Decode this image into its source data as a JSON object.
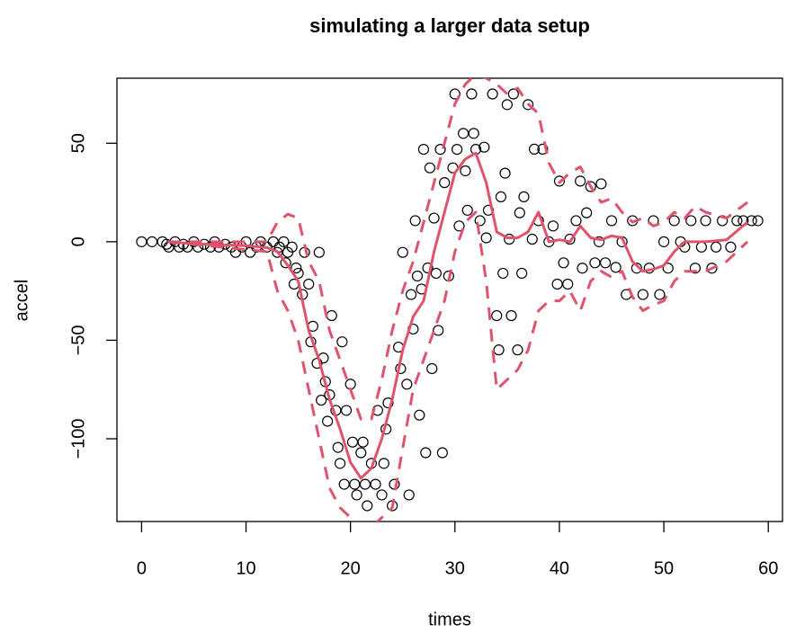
{
  "chart_data": {
    "type": "scatter",
    "title": "simulating a larger data setup",
    "xlabel": "times",
    "ylabel": "accel",
    "xlim": [
      -2.36,
      61.36
    ],
    "ylim": [
      -142,
      83
    ],
    "xticks": [
      0,
      10,
      20,
      30,
      40,
      50,
      60
    ],
    "yticks": [
      {
        "value": -100,
        "label": "−100"
      },
      {
        "value": -50,
        "label": "−50"
      },
      0,
      50
    ],
    "series": [
      {
        "mode": "points",
        "color": "#000000",
        "x": [
          0,
          1,
          2,
          2.4,
          2.6,
          3.2,
          3.6,
          4,
          4.4,
          5,
          5.4,
          6,
          6.6,
          7,
          7.4,
          8,
          8.6,
          9,
          9.6,
          10,
          10.4,
          11,
          11.4,
          12,
          12.6,
          13,
          13.2,
          13.6,
          13.8,
          14,
          14.4,
          14.6,
          14.8,
          15,
          15.4,
          15.6,
          16,
          16.2,
          16.4,
          16.8,
          17,
          17.2,
          17.4,
          17.6,
          17.8,
          18,
          18.2,
          18.6,
          18.8,
          19,
          19.2,
          19.4,
          19.6,
          20,
          20.2,
          20.4,
          20.6,
          21,
          21.2,
          21.4,
          21.6,
          22,
          22.4,
          22.6,
          23,
          23.2,
          23.4,
          23.6,
          24,
          24.2,
          24.6,
          24.8,
          25,
          25.4,
          25.6,
          25.8,
          26,
          26.2,
          26.4,
          26.6,
          26.8,
          27,
          27.2,
          27.4,
          27.6,
          27.8,
          28,
          28.2,
          28.4,
          28.6,
          28.8,
          29,
          29.4,
          29.8,
          30,
          30.2,
          30.4,
          30.8,
          31,
          31.2,
          31.6,
          31.8,
          32,
          32.4,
          32.8,
          33,
          33.2,
          33.6,
          34,
          34.2,
          34.4,
          34.6,
          34.8,
          35,
          35.2,
          35.4,
          35.6,
          36,
          36.2,
          36.4,
          36.6,
          37,
          37.4,
          37.6,
          38,
          38.4,
          39,
          39.4,
          39.8,
          40,
          40.4,
          40.8,
          41,
          41.6,
          42,
          42.2,
          42.6,
          43,
          43.4,
          43.8,
          44,
          44.4,
          45,
          45.4,
          46,
          46.4,
          47,
          47.4,
          48,
          48.6,
          49,
          49.6,
          50,
          50.4,
          51,
          51.6,
          52,
          52.6,
          53,
          53.6,
          54,
          54.6,
          55,
          55.6,
          56.4,
          57,
          57.6,
          58.4,
          59
        ],
        "y": [
          0,
          0,
          0,
          -1.3,
          -2.7,
          0,
          -2.7,
          -1.3,
          -2.7,
          0,
          -2.7,
          -1.3,
          -2.7,
          0,
          -2.7,
          -1.3,
          -2.7,
          -5.4,
          -2.7,
          0,
          -5.4,
          -2.7,
          0,
          -2.7,
          0,
          -5.4,
          -2.7,
          0,
          -10.7,
          -5.4,
          -2.7,
          -21.5,
          -13.3,
          -16,
          -26.8,
          -5.4,
          -21.5,
          -50.8,
          -42.9,
          -61.7,
          -5.4,
          -80.4,
          -59,
          -71,
          -91.1,
          -77.7,
          -37.5,
          -85.6,
          -104.4,
          -112.5,
          -50.8,
          -123.1,
          -85.6,
          -72.3,
          -101.7,
          -123.1,
          -128.5,
          -107.1,
          -101.7,
          -123.1,
          -134,
          -112.5,
          -123.1,
          -85.6,
          -128.5,
          -112.5,
          -95.1,
          -81.8,
          -134,
          -123.1,
          -53.5,
          -64.4,
          -5.4,
          -72.3,
          -128.5,
          -26.8,
          -44.3,
          10.7,
          -17.4,
          -88,
          -24,
          46.9,
          -107.1,
          -13.3,
          37.5,
          -64.4,
          12,
          -16,
          -45,
          46.9,
          -107.1,
          30,
          -17.4,
          37.5,
          75,
          46.9,
          8,
          55,
          36,
          16,
          75,
          55,
          46.9,
          10.7,
          48,
          2,
          16,
          75,
          -37.5,
          -54.9,
          22.8,
          -16,
          34.8,
          69.6,
          1.3,
          -37.5,
          75,
          -54.9,
          14.7,
          -16,
          22.8,
          69.6,
          1.3,
          47,
          10.7,
          47,
          0,
          8,
          -21.5,
          30.8,
          -10.7,
          -21.5,
          1.3,
          10.7,
          30.8,
          -13.4,
          14.7,
          28,
          -10.7,
          0,
          29.4,
          -10.7,
          10.7,
          -13,
          0,
          -26.8,
          10.7,
          -13.4,
          -26.8,
          -13.4,
          10.7,
          -26.8,
          0,
          -13.4,
          10.7,
          0,
          -2.7,
          10.7,
          -13.4,
          -2.7,
          10.7,
          -13.4,
          -2.7,
          10.7,
          -2.7,
          10.7,
          10.7,
          10.7,
          10.7
        ]
      },
      {
        "mode": "line",
        "color": "#df536b",
        "dashed": false,
        "x": [
          2.5,
          5,
          10,
          12,
          13,
          14,
          15,
          16,
          17,
          18,
          19,
          20,
          21,
          22,
          23,
          24,
          25,
          26,
          27,
          28,
          29,
          30,
          31,
          32,
          33,
          34,
          35,
          36,
          37,
          38,
          39,
          40,
          41,
          42,
          43,
          44,
          45,
          46,
          47,
          48,
          49,
          50,
          51,
          52,
          54,
          56,
          58
        ],
        "y": [
          0,
          -1,
          -2,
          -3,
          -5,
          -12,
          -20,
          -45,
          -60,
          -80,
          -95,
          -112,
          -120,
          -115,
          -100,
          -80,
          -55,
          -38,
          -30,
          -5,
          15,
          35,
          42,
          45,
          30,
          5,
          2,
          2,
          5,
          15,
          0,
          1,
          0,
          8,
          2,
          1,
          3,
          2,
          -10,
          -15,
          -14,
          -12,
          -5,
          0,
          0,
          1,
          10
        ]
      },
      {
        "mode": "line",
        "color": "#df536b",
        "dashed": true,
        "x": [
          2.5,
          10,
          11,
          12,
          13,
          14,
          15,
          16,
          17,
          18,
          19,
          20,
          21,
          22,
          23,
          24,
          25,
          26,
          27,
          28,
          29,
          30,
          31,
          32,
          33,
          34,
          35,
          36,
          37,
          38,
          39,
          40,
          41,
          42,
          43,
          44,
          45,
          46,
          47,
          48,
          49,
          50,
          51,
          52,
          53,
          54,
          56,
          58
        ],
        "y": [
          0,
          0,
          0,
          0,
          10,
          14,
          12,
          -10,
          -20,
          -45,
          -60,
          -75,
          -90,
          -90,
          -70,
          -45,
          -25,
          -10,
          10,
          30,
          50,
          70,
          80,
          85,
          83,
          80,
          75,
          78,
          70,
          65,
          40,
          30,
          35,
          38,
          28,
          20,
          22,
          15,
          10,
          12,
          8,
          10,
          15,
          12,
          18,
          15,
          12,
          20
        ]
      },
      {
        "mode": "line",
        "color": "#df536b",
        "dashed": true,
        "x": [
          2.5,
          10,
          12,
          13,
          14,
          15,
          16,
          17,
          18,
          19,
          20,
          21,
          22,
          23,
          24,
          25,
          26,
          27,
          28,
          29,
          30,
          31,
          32,
          33,
          34,
          35,
          36,
          37,
          38,
          39,
          40,
          41,
          42,
          43,
          44,
          45,
          46,
          47,
          48,
          49,
          50,
          51,
          52,
          54,
          56,
          58
        ],
        "y": [
          0,
          -4,
          -5,
          -25,
          -35,
          -50,
          -75,
          -100,
          -125,
          -135,
          -140,
          -145,
          -145,
          -140,
          -135,
          -105,
          -75,
          -60,
          -45,
          -30,
          -5,
          10,
          15,
          -20,
          -75,
          -70,
          -65,
          -55,
          -35,
          -30,
          -30,
          -25,
          -35,
          -20,
          -15,
          -18,
          -15,
          -28,
          -35,
          -32,
          -30,
          -20,
          -15,
          -15,
          -10,
          0
        ]
      }
    ]
  }
}
